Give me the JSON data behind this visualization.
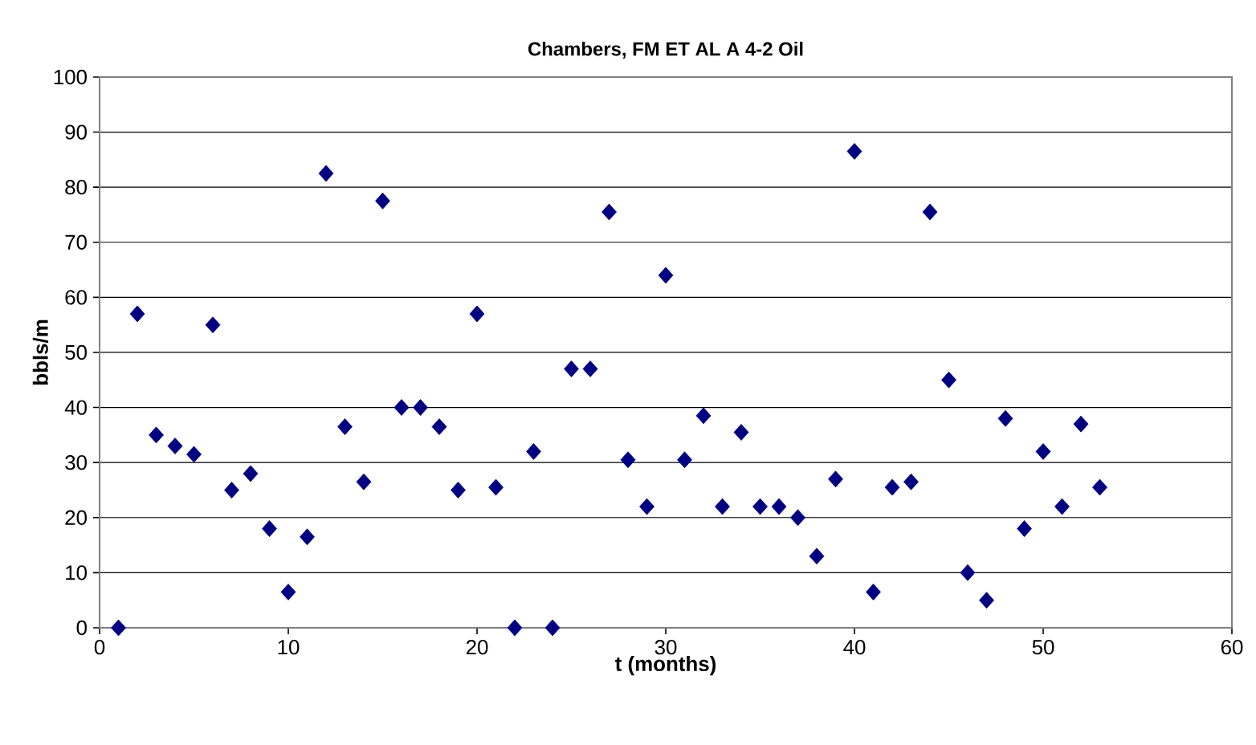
{
  "chart_data": {
    "type": "scatter",
    "title": "Chambers, FM ET AL A 4-2 Oil",
    "xlabel": "t (months)",
    "ylabel": "bbls/m",
    "series": [
      {
        "color": "#000080",
        "x": [
          1,
          2,
          3,
          4,
          5,
          6,
          7,
          8,
          9,
          10,
          11,
          12,
          13,
          14,
          15,
          16,
          17,
          18,
          19,
          20,
          21,
          22,
          23,
          24,
          25,
          26,
          27,
          28,
          29,
          30,
          31,
          32,
          33,
          34,
          35,
          36,
          37,
          38,
          39,
          40,
          41,
          42,
          43,
          44,
          45,
          46,
          47,
          48,
          49,
          50,
          51,
          52,
          53
        ],
        "values": [
          0,
          57,
          35,
          33,
          31.5,
          55,
          25,
          28,
          18,
          6.5,
          16.5,
          82.5,
          36.5,
          26.5,
          77.5,
          40,
          40,
          36.5,
          25,
          57,
          25.5,
          0,
          32,
          0,
          47,
          47,
          75.5,
          30.5,
          22,
          64,
          30.5,
          38.5,
          22,
          35.5,
          22,
          22,
          20,
          13,
          27,
          86.5,
          6.5,
          25.5,
          26.5,
          75.5,
          45,
          10,
          5,
          38,
          18,
          32,
          22,
          37,
          25.5
        ]
      }
    ],
    "xlim": [
      0,
      60
    ],
    "xticks": [
      0,
      10,
      20,
      30,
      40,
      50,
      60
    ],
    "ylim": [
      0,
      100
    ],
    "yticks": [
      0,
      10,
      20,
      30,
      40,
      50,
      60,
      70,
      80,
      90,
      100
    ],
    "grid": "y",
    "marker": "diamond"
  }
}
